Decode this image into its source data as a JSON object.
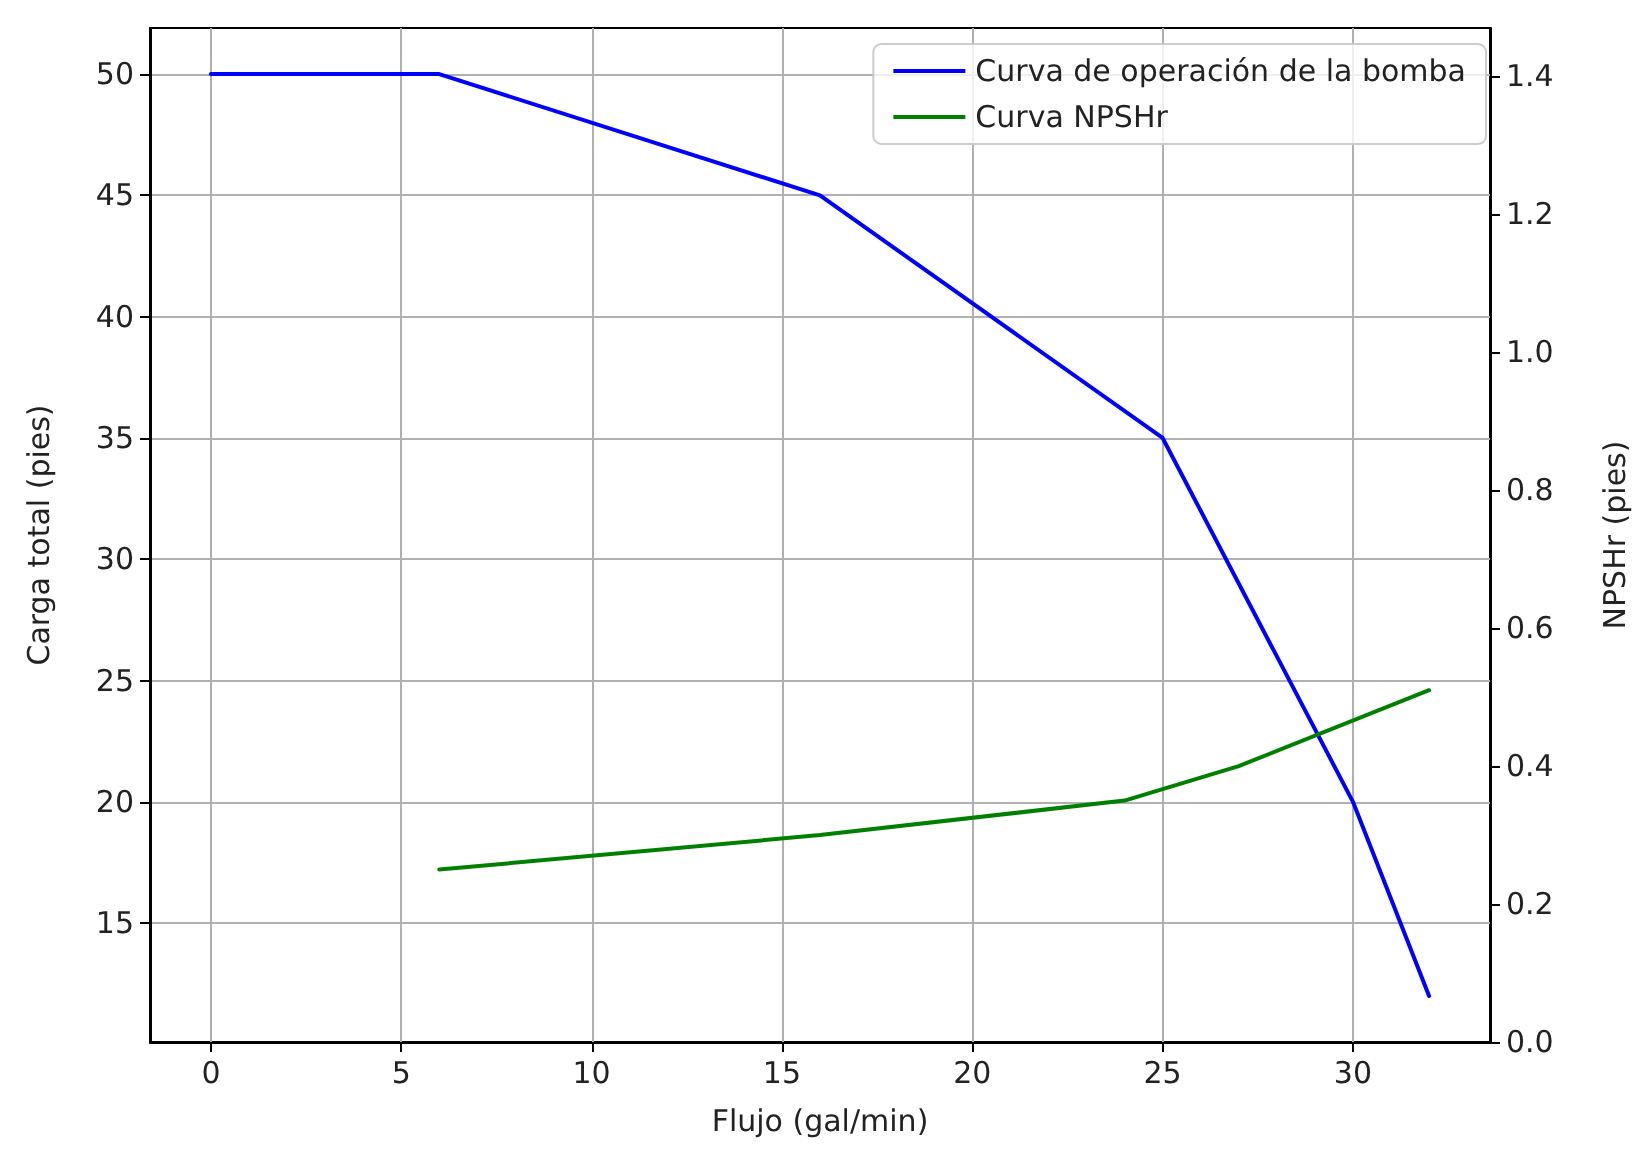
{
  "chart_data": {
    "type": "line",
    "xlabel": "Flujo (gal/min)",
    "ylabel": "Carga total (pies)",
    "y2label": "NPSHr (pies)",
    "xlim": [
      -1.6,
      33.6
    ],
    "xticks": [
      0,
      5,
      10,
      15,
      20,
      25,
      30
    ],
    "ylim": [
      10.1,
      51.9
    ],
    "yticks": [
      15,
      20,
      25,
      30,
      35,
      40,
      45,
      50
    ],
    "y2lim": [
      0,
      1.47
    ],
    "y2ticks": [
      {
        "value": 0,
        "label": "0.0"
      },
      0.2,
      0.4,
      0.6,
      0.8,
      {
        "value": 1,
        "label": "1.0"
      },
      1.2,
      1.4
    ],
    "grid": true,
    "legend": "top right",
    "marker": "none",
    "line_style": "solid",
    "series": [
      {
        "name": "Curva de operación de la bomba",
        "color": "#0000ff",
        "x": [
          0,
          6,
          16,
          25,
          30,
          32
        ],
        "values": [
          50,
          50,
          45,
          35,
          20,
          12
        ]
      },
      {
        "name": "Curva NPSHr",
        "color": "#008000",
        "axis": "y2",
        "x": [
          6,
          16,
          24,
          27,
          32
        ],
        "values": [
          0.25,
          0.3,
          0.35,
          0.4,
          0.51
        ]
      }
    ]
  }
}
